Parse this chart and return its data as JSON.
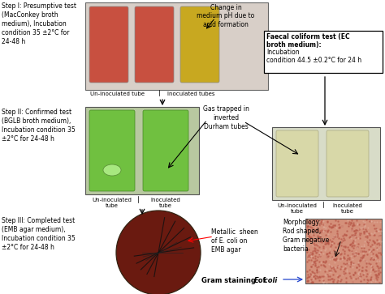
{
  "bg_color": "#ffffff",
  "step1_text": "Step I: Presumptive test\n(MacConkey broth\nmedium), Incubation\ncondition 35 ±2°C for\n24-48 h",
  "step2_text": "Step II: Confirmed test\n(BGLB broth medium),\nIncubation condition 35\n±2°C for 24-48 h",
  "step3_text": "Step III: Completed test\n(EMB agar medium),\nIncubation condition 35\n±2°C for 24-48 h",
  "faecal_text": "Faecal coliform test (EC\nbroth medium): Incubation\ncondition 44.5 ±0.2°C for 24 h",
  "faecal_bold": "Faecal coliform test (EC\nbroth medium):",
  "faecal_normal": "Incubation\ncondition 44.5 ±0.2°C for 24 h",
  "annotation1": "Change in\nmedium pH due to\nacid formation",
  "annotation2": "Gas trapped in\ninverted\nDurham tubes",
  "annotation3": "Metallic  sheen\nof E. coli on\nEMB agar",
  "annotation4": "Morphology:\nRod shaped,\nGram negative\nbacteria",
  "annotation5": "Gram staining of ",
  "annotation5b": "E. coli",
  "label_uninoc1": "Un-inoculated tube",
  "label_inoc1": "Inoculated tubes",
  "label_uninoc2a": "Un-inoculated\ntube",
  "label_inoc2a": "Inoculated\ntube",
  "label_uninoc2b": "Un-inoculated\ntube",
  "label_inoc2b": "Inoculated\ntube",
  "tube1_color": "#c85040",
  "tube2_color": "#c85040",
  "tube3_color": "#c8a820",
  "tube_green1": "#70c040",
  "tube_green2": "#70c040",
  "tube_ecbroth1": "#d8d8a8",
  "tube_ecbroth2": "#d8d8a8",
  "emb_color": "#6a1a10",
  "gram_color": "#d4907a",
  "photo1_bg": "#d8cfc8",
  "photo2_bg": "#b8c8a0",
  "photo2r_bg": "#d8dcc8"
}
